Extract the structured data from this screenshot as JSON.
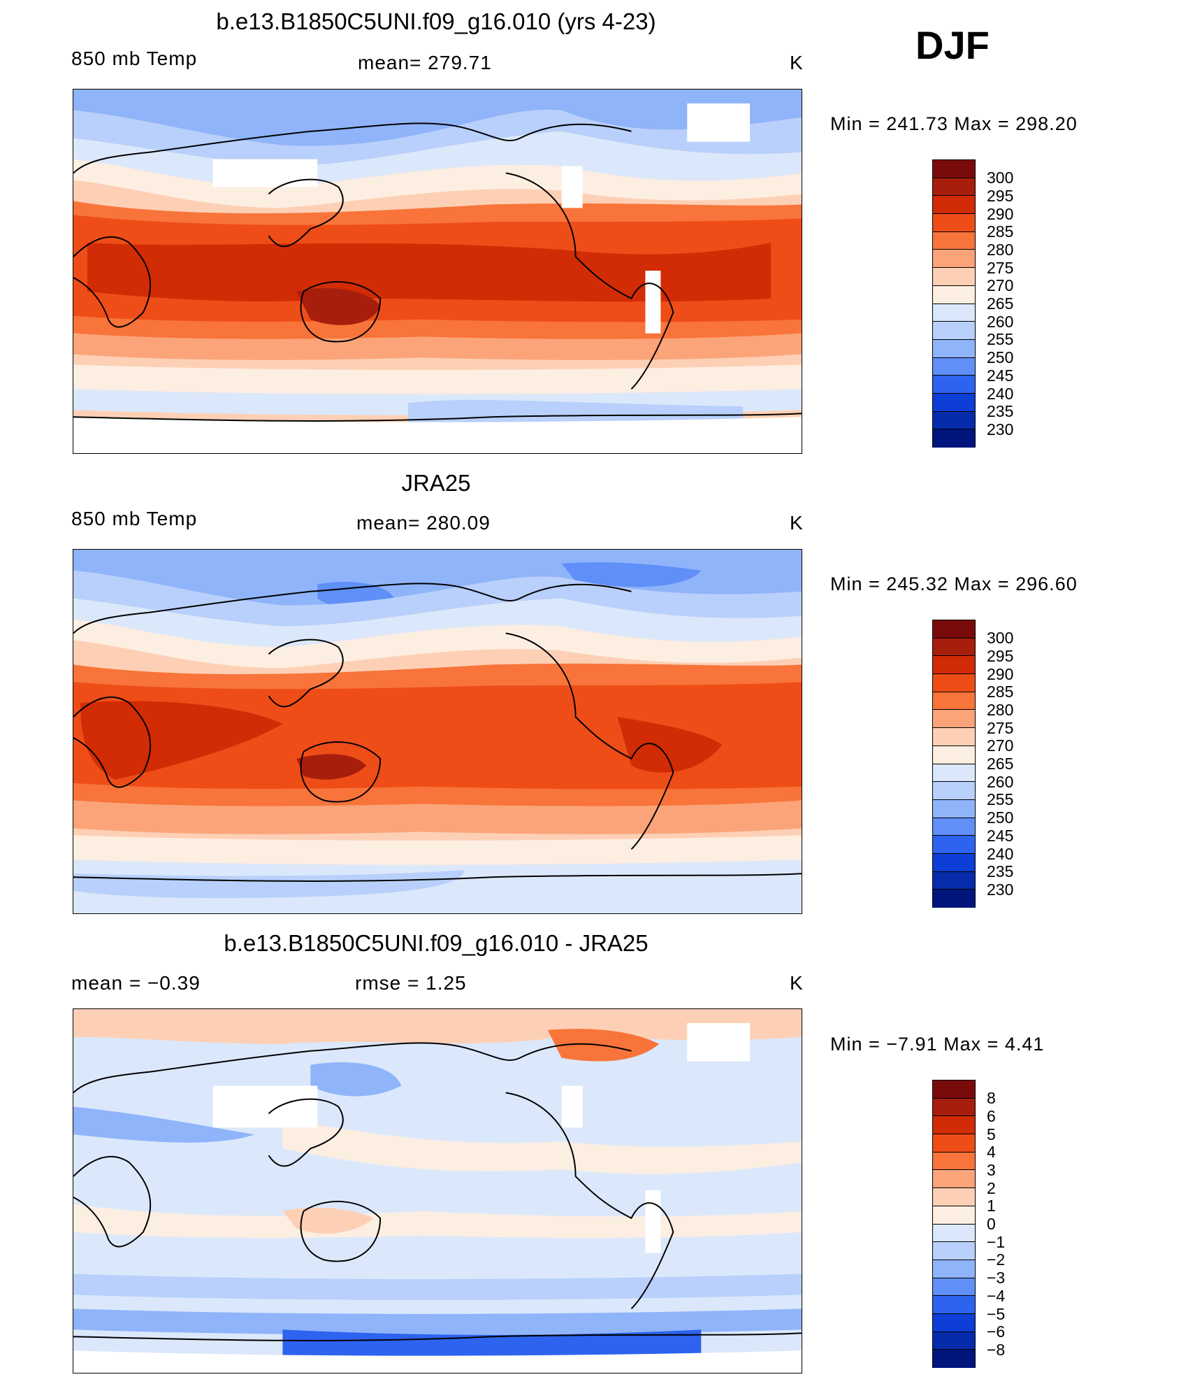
{
  "season": "DJF",
  "panels": [
    {
      "title": "b.e13.B1850C5UNI.f09_g16.010 (yrs 4-23)",
      "left_label": "850 mb Temp",
      "center_label": "mean=  279.71",
      "units": "K",
      "minmax": "Min  =  241.73  Max  =  298.20",
      "colorbar_ticks": [
        "300",
        "295",
        "290",
        "285",
        "280",
        "275",
        "270",
        "265",
        "260",
        "255",
        "250",
        "245",
        "240",
        "235",
        "230"
      ]
    },
    {
      "title": "JRA25",
      "left_label": "850 mb Temp",
      "center_label": "mean=  280.09",
      "units": "K",
      "minmax": "Min  =  245.32  Max  =  296.60",
      "colorbar_ticks": [
        "300",
        "295",
        "290",
        "285",
        "280",
        "275",
        "270",
        "265",
        "260",
        "255",
        "250",
        "245",
        "240",
        "235",
        "230"
      ]
    },
    {
      "title": "b.e13.B1850C5UNI.f09_g16.010 - JRA25",
      "left_label": "mean  =    −0.39",
      "center_label": "rmse  =     1.25",
      "units": "K",
      "minmax": "Min  =    −7.91  Max  =     4.41",
      "colorbar_ticks": [
        "8",
        "6",
        "5",
        "4",
        "3",
        "2",
        "1",
        "0",
        "−1",
        "−2",
        "−3",
        "−4",
        "−5",
        "−6",
        "−8"
      ]
    }
  ],
  "colors": {
    "colorbar": [
      "#7a0b0b",
      "#a81e0d",
      "#d12c05",
      "#ee4d18",
      "#f8743a",
      "#fba47a",
      "#fdd0b5",
      "#fdeee2",
      "#dbe8fb",
      "#b8d0fb",
      "#8fb4fa",
      "#5f8ff7",
      "#2d63ee",
      "#0d3fd6",
      "#062cab",
      "#00167c"
    ],
    "diff_colorbar": [
      "#7a0b0b",
      "#a81e0d",
      "#d12c05",
      "#ee4d18",
      "#f8743a",
      "#fba47a",
      "#fdd0b5",
      "#fdeee2",
      "#dbe8fb",
      "#b8d0fb",
      "#8fb4fa",
      "#5f8ff7",
      "#2d63ee",
      "#0d3fd6",
      "#062cab",
      "#00167c"
    ]
  },
  "icons": {
    "map": "world-map-icon",
    "coastline": "coastline-icon"
  }
}
